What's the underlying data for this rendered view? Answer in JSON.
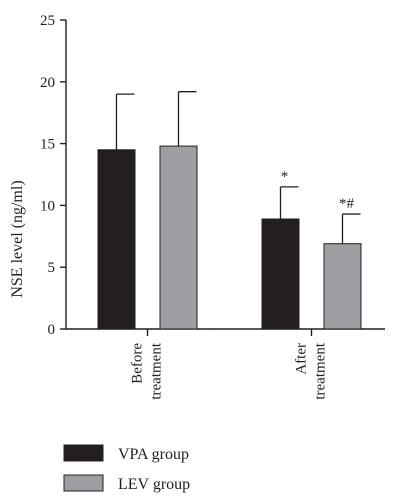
{
  "chart_data": {
    "type": "bar",
    "ylabel": "NSE level (ng/ml)",
    "ylim": [
      0,
      25
    ],
    "yticks": [
      0,
      5,
      10,
      15,
      20,
      25
    ],
    "grid": false,
    "legend_position": "bottom-left",
    "categories": [
      {
        "lines": [
          "Before",
          "treatment"
        ]
      },
      {
        "lines": [
          "After",
          "treatment"
        ]
      }
    ],
    "series": [
      {
        "name": "VPA group",
        "color": "#231f20",
        "values": [
          14.5,
          8.9
        ],
        "errors": [
          4.5,
          2.6
        ],
        "annotations": [
          "",
          "*"
        ]
      },
      {
        "name": "LEV group",
        "color": "#9d9fa2",
        "values": [
          14.8,
          6.9
        ],
        "errors": [
          4.4,
          2.4
        ],
        "annotations": [
          "",
          "*#"
        ]
      }
    ]
  }
}
